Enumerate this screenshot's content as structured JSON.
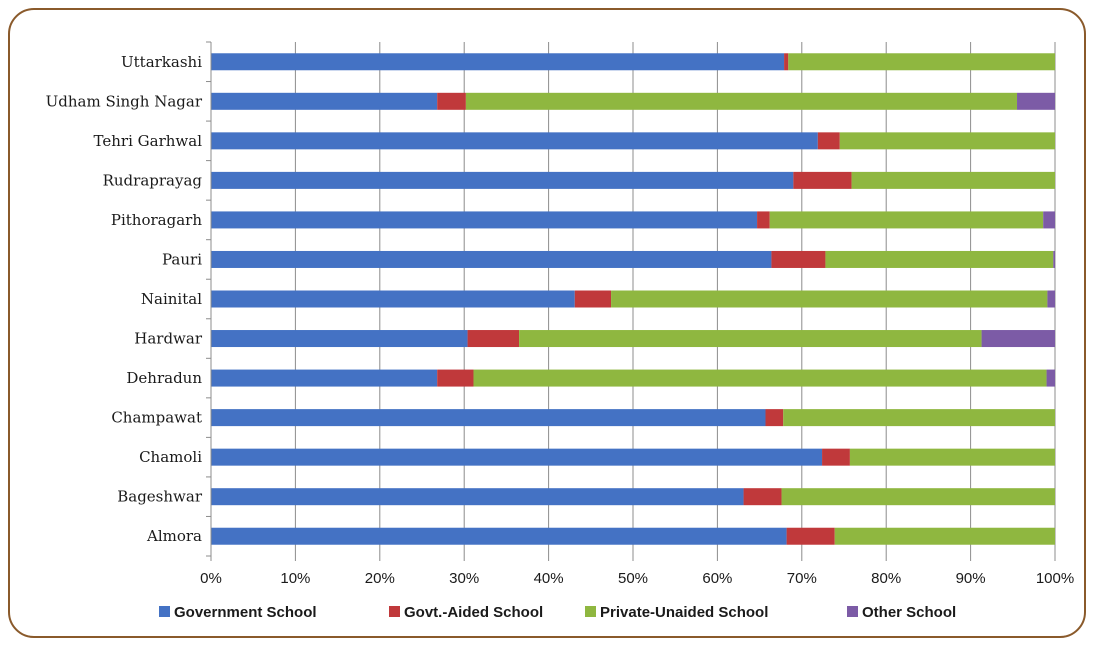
{
  "chart_data": {
    "type": "bar",
    "orientation": "horizontal",
    "stacked": "percent",
    "title": "",
    "xlabel": "",
    "ylabel": "",
    "xlim": [
      0,
      100
    ],
    "x_ticks": [
      "0%",
      "10%",
      "20%",
      "30%",
      "40%",
      "50%",
      "60%",
      "70%",
      "80%",
      "90%",
      "100%"
    ],
    "grid": true,
    "legend_position": "bottom",
    "categories": [
      "Almora",
      "Bageshwar",
      "Chamoli",
      "Champawat",
      "Dehradun",
      "Hardwar",
      "Nainital",
      "Pauri",
      "Pithoragarh",
      "Rudraprayag",
      "Tehri Garhwal",
      "Udham Singh Nagar",
      "Uttarkashi"
    ],
    "series": [
      {
        "name": "Government School",
        "color": "#4472c4",
        "values": [
          68.2,
          63.1,
          72.4,
          65.7,
          26.8,
          30.4,
          43.1,
          66.4,
          64.7,
          69.0,
          71.9,
          26.8,
          67.9
        ]
      },
      {
        "name": "Govt.-Aided School",
        "color": "#c0393b",
        "values": [
          5.7,
          4.5,
          3.3,
          2.1,
          4.3,
          6.1,
          4.3,
          6.4,
          1.5,
          6.9,
          2.6,
          3.4,
          0.5
        ]
      },
      {
        "name": "Private-Unaided School",
        "color": "#8fb740",
        "values": [
          26.1,
          32.4,
          24.3,
          32.2,
          67.9,
          54.8,
          51.7,
          27.0,
          32.4,
          24.1,
          25.5,
          65.3,
          31.6
        ]
      },
      {
        "name": "Other School",
        "color": "#7c5ba6",
        "values": [
          0.0,
          0.0,
          0.0,
          0.0,
          1.0,
          8.7,
          0.9,
          0.2,
          1.4,
          0.0,
          0.0,
          4.5,
          0.0
        ]
      }
    ]
  }
}
